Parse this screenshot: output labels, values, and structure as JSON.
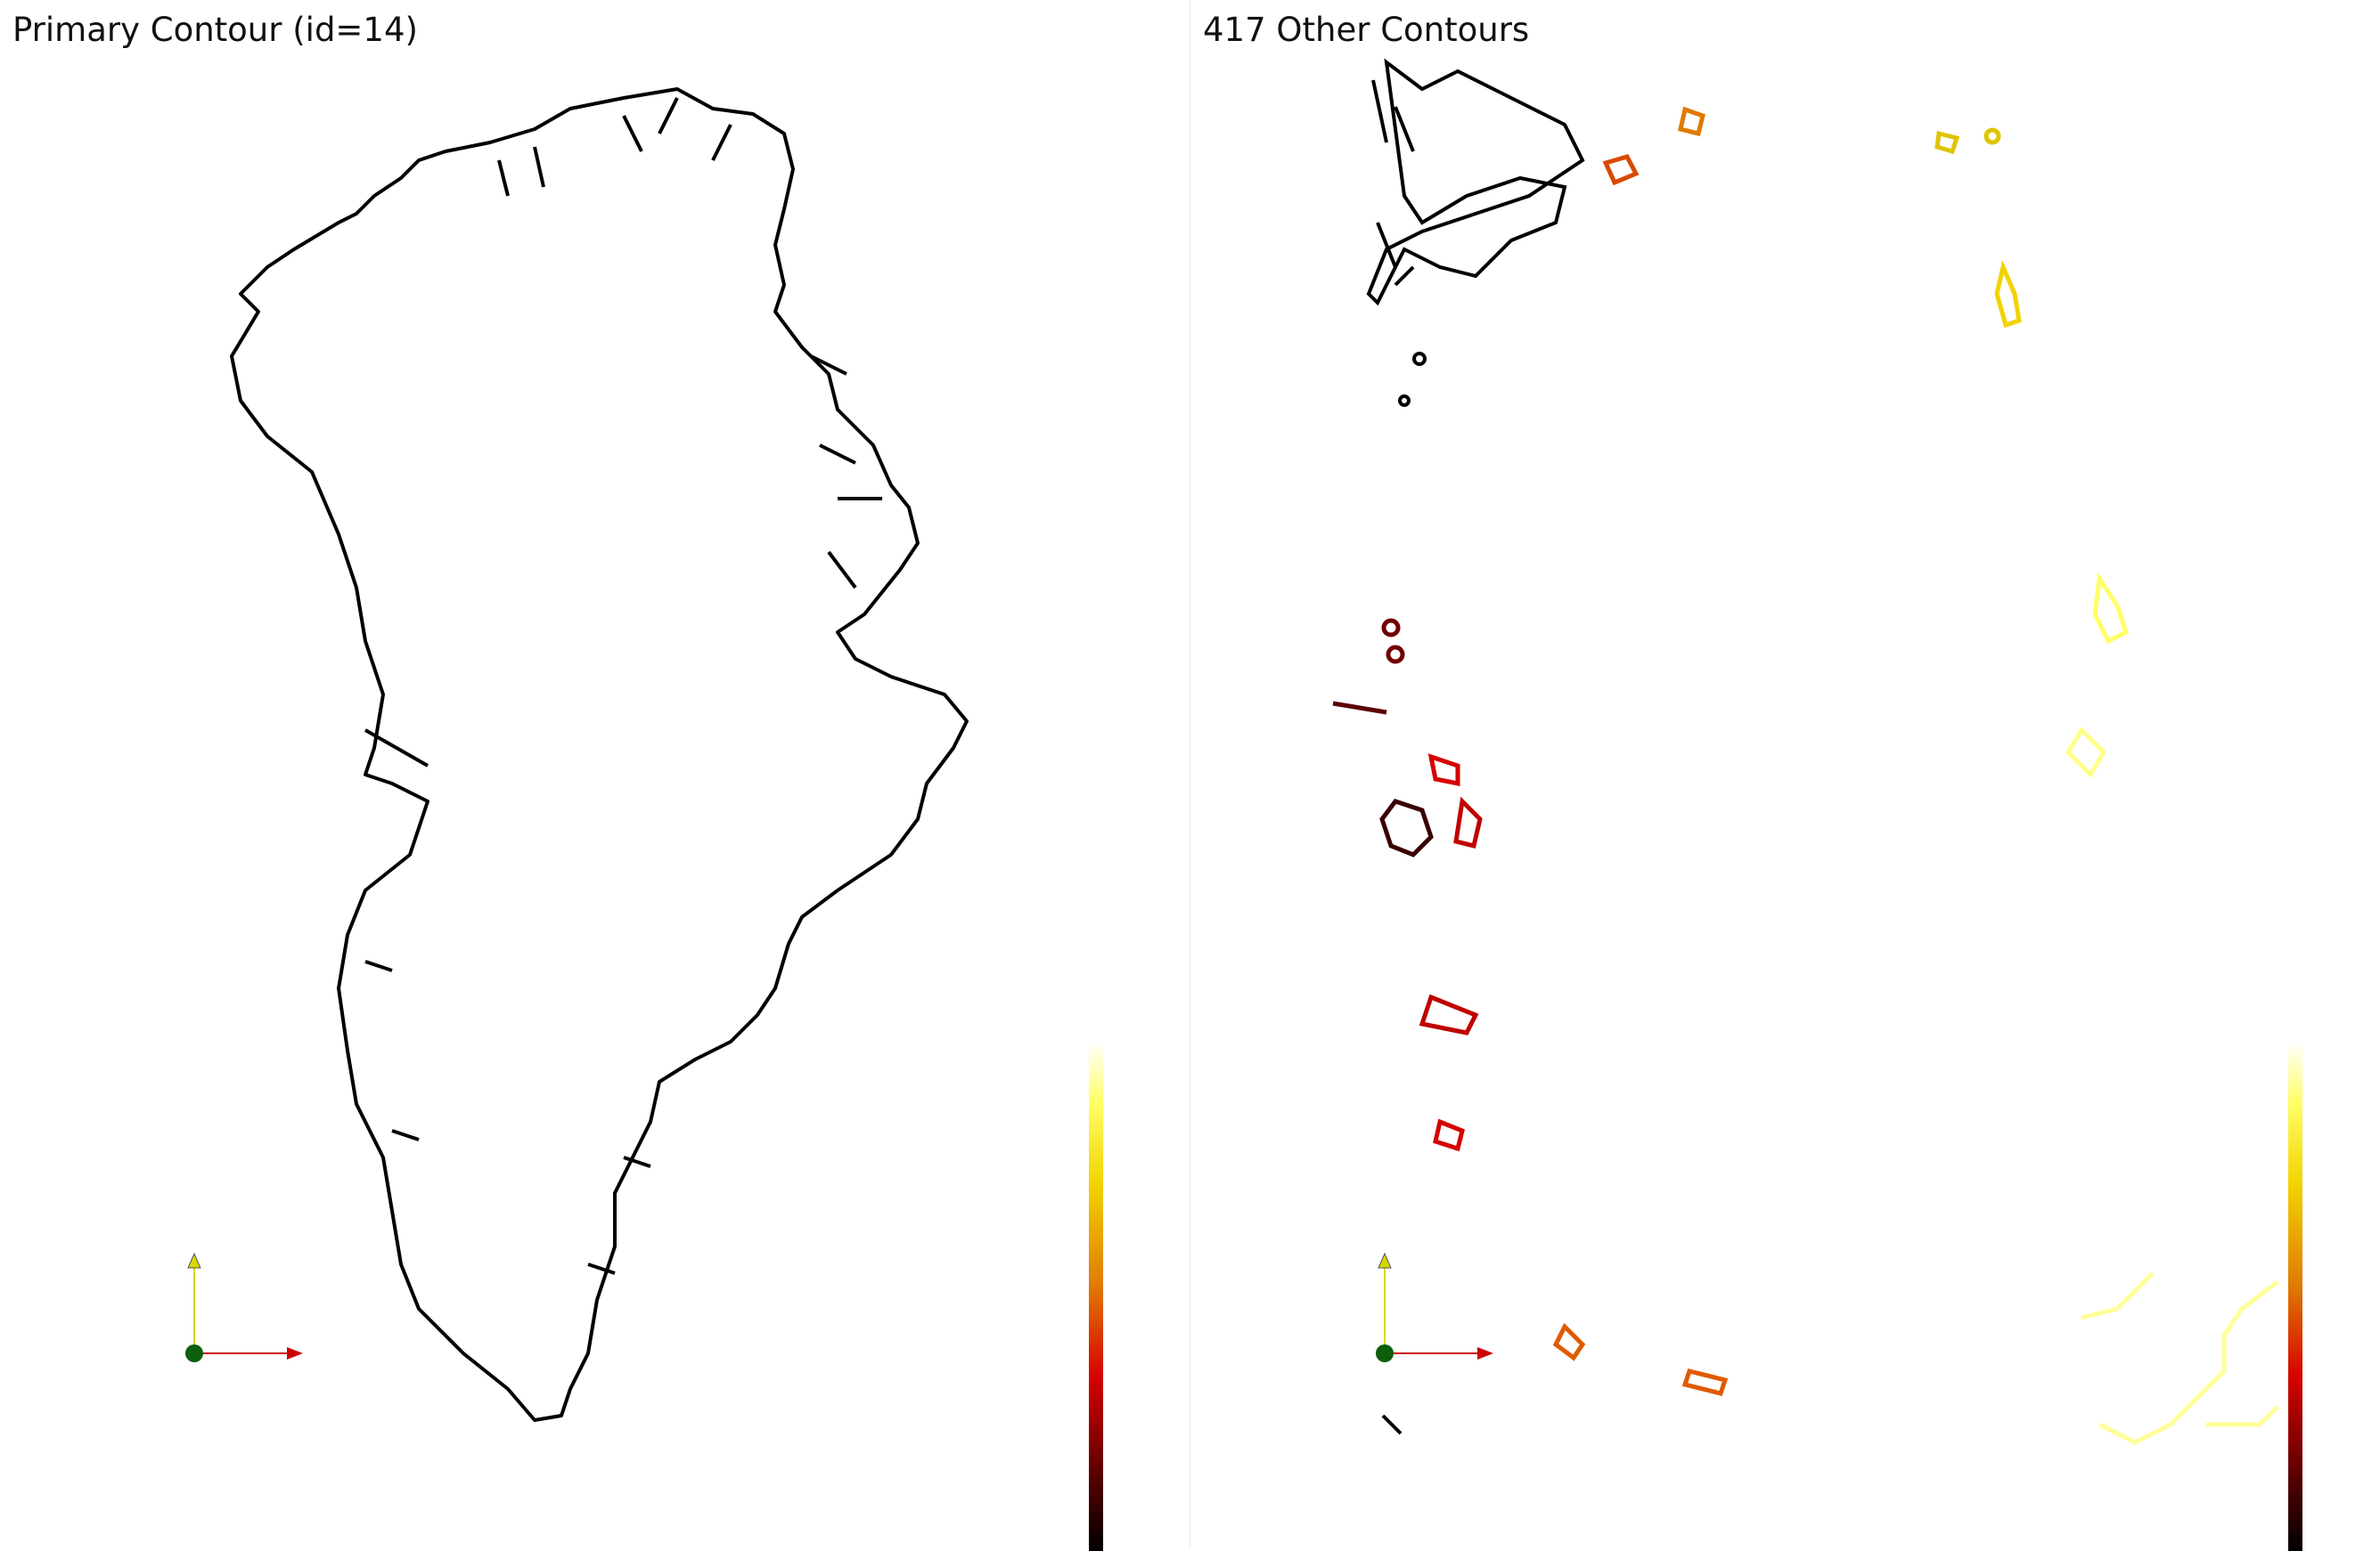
{
  "panels": [
    {
      "title": "Primary Contour (id=14)"
    },
    {
      "title": "417 Other Contours"
    }
  ],
  "colors": {
    "contour_primary": "#000000",
    "axis_x": "#cc0000",
    "axis_y": "#d8d800",
    "origin": "#0d5e0d",
    "colormap": [
      "#ffffff",
      "#ffff66",
      "#f2d300",
      "#e07a00",
      "#d60000",
      "#5a0000",
      "#000000"
    ]
  },
  "icons": {
    "origin_marker": "origin-dot-icon",
    "x_axis_arrow": "x-axis-arrow-icon",
    "y_axis_arrow": "y-axis-arrow-icon"
  }
}
